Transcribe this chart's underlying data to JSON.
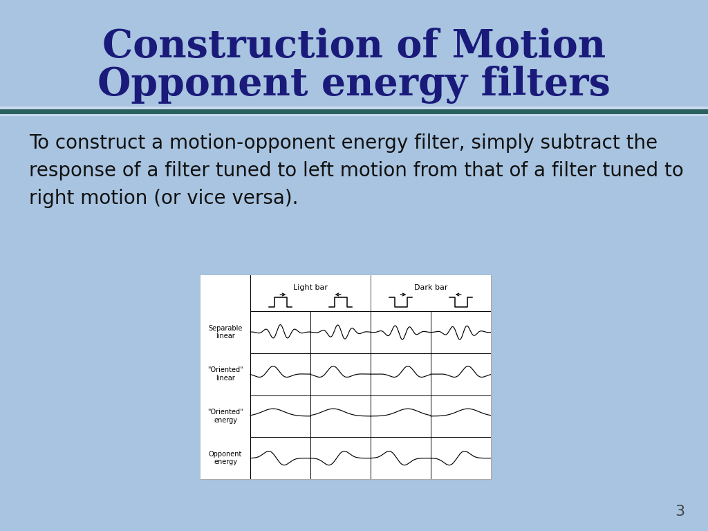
{
  "bg_color": "#a8c4e0",
  "title_line1": "Construction of Motion",
  "title_line2": "Opponent energy filters",
  "title_color": "#1a1a7a",
  "title_fontsize": 40,
  "body_text": "To construct a motion-opponent energy filter, simply subtract the\nresponse of a filter tuned to left motion from that of a filter tuned to\nright motion (or vice versa).",
  "body_fontsize": 20,
  "body_color": "#111111",
  "slide_number": "3",
  "row_labels": [
    "Separable\nlinear",
    "\"Oriented\"\nlinear",
    "\"Oriented\"\nenergy",
    "Opponent\nenergy"
  ],
  "col_labels_light": "Light bar",
  "col_labels_dark": "Dark bar"
}
